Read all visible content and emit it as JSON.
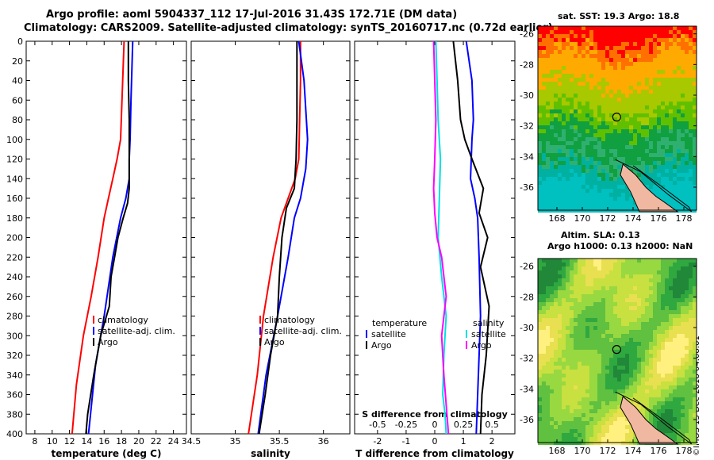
{
  "header": {
    "title_line1": "Argo profile: aoml 5904337_112 17-Jul-2016 31.43S 172.71E (DM data)",
    "title_line2": "Climatology: CARS2009. Satellite-adjusted climatology: synTS_20160717.nc (0.72d earlier)"
  },
  "copyright": "©IMOS 13-Dec-2018 04:08:01",
  "colors": {
    "climatology": "#ff0000",
    "satellite": "#0000ff",
    "argo": "#000000",
    "s_diff": "#ff00ff",
    "s_sat": "#00e0e0"
  },
  "chart_data": [
    {
      "type": "line",
      "name": "temperature-panel",
      "xlabel": "temperature (deg C)",
      "xlim": [
        7,
        25.5
      ],
      "xticks": [
        "8",
        "10",
        "12",
        "14",
        "16",
        "18",
        "20",
        "22",
        "24"
      ],
      "xtick_values": [
        8,
        10,
        12,
        14,
        16,
        18,
        20,
        22,
        24
      ],
      "ylim": [
        0,
        400
      ],
      "yticks": [
        "0",
        "20",
        "40",
        "60",
        "80",
        "100",
        "120",
        "140",
        "160",
        "180",
        "200",
        "220",
        "240",
        "260",
        "280",
        "300",
        "320",
        "340",
        "360",
        "380",
        "400"
      ],
      "ytick_values": [
        0,
        20,
        40,
        60,
        80,
        100,
        120,
        140,
        160,
        180,
        200,
        220,
        240,
        260,
        280,
        300,
        320,
        340,
        360,
        380,
        400
      ],
      "legend": [
        "climatology",
        "satellite-adj. clim.",
        "Argo"
      ],
      "series": [
        {
          "name": "climatology",
          "color": "#ff0000",
          "x": [
            18.3,
            18.1,
            17.9,
            17.5,
            17.0,
            16.5,
            16.0,
            15.3,
            14.5,
            13.6,
            12.8,
            12.3
          ],
          "y": [
            0,
            50,
            100,
            120,
            140,
            160,
            180,
            220,
            260,
            300,
            350,
            400
          ]
        },
        {
          "name": "satellite-adj. clim.",
          "color": "#0000ff",
          "x": [
            19.3,
            19.2,
            19.1,
            19.0,
            18.9,
            18.9,
            18.5,
            17.9,
            17.0,
            16.0,
            15.0,
            14.2
          ],
          "y": [
            0,
            30,
            60,
            100,
            120,
            140,
            160,
            180,
            220,
            280,
            330,
            400
          ]
        },
        {
          "name": "Argo",
          "color": "#000000",
          "x": [
            18.8,
            18.8,
            18.9,
            18.9,
            18.9,
            18.7,
            18.2,
            17.6,
            17.2,
            16.8,
            16.6,
            15.6,
            14.8,
            14.1,
            13.9
          ],
          "y": [
            0,
            40,
            80,
            120,
            150,
            165,
            180,
            200,
            220,
            240,
            270,
            300,
            340,
            380,
            400
          ]
        }
      ]
    },
    {
      "type": "line",
      "name": "salinity-panel",
      "xlabel": "salinity",
      "xlim": [
        34.5,
        36.3
      ],
      "xticks": [
        "34.5",
        "35",
        "35.5",
        "36"
      ],
      "xtick_values": [
        34.5,
        35,
        35.5,
        36
      ],
      "ylim": [
        0,
        400
      ],
      "legend": [
        "climatology",
        "satellite-adj. clim.",
        "Argo"
      ],
      "series": [
        {
          "name": "climatology",
          "color": "#ff0000",
          "x": [
            35.74,
            35.74,
            35.73,
            35.72,
            35.68,
            35.6,
            35.52,
            35.43,
            35.32,
            35.25,
            35.15
          ],
          "y": [
            0,
            40,
            80,
            120,
            140,
            160,
            180,
            220,
            280,
            340,
            400
          ]
        },
        {
          "name": "satellite-adj. clim.",
          "color": "#0000ff",
          "x": [
            35.72,
            35.78,
            35.82,
            35.8,
            35.74,
            35.67,
            35.6,
            35.48,
            35.35,
            35.26
          ],
          "y": [
            0,
            40,
            100,
            130,
            160,
            180,
            220,
            280,
            340,
            400
          ]
        },
        {
          "name": "Argo",
          "color": "#000000",
          "x": [
            35.7,
            35.7,
            35.7,
            35.69,
            35.67,
            35.58,
            35.53,
            35.5,
            35.48,
            35.4,
            35.34,
            35.27
          ],
          "y": [
            0,
            40,
            80,
            120,
            150,
            170,
            200,
            240,
            280,
            320,
            360,
            400
          ]
        }
      ]
    },
    {
      "type": "line",
      "name": "difference-panel",
      "xlabel": "T difference from climatology",
      "xlim": [
        -2.8,
        2.8
      ],
      "xticks": [
        "-2",
        "-1",
        "0",
        "1",
        "2"
      ],
      "xtick_values": [
        -2,
        -1,
        0,
        1,
        2
      ],
      "sub_xlabel": "S difference from climatology",
      "sub_xlim": [
        -0.7,
        0.7
      ],
      "sub_xticks": [
        "-0.5",
        "-0.25",
        "0",
        "0.25",
        "0.5"
      ],
      "sub_xtick_values": [
        -0.5,
        -0.25,
        0,
        0.25,
        0.5
      ],
      "ylim": [
        0,
        400
      ],
      "legend_left_title": "temperature",
      "legend_left": [
        "satellite",
        "Argo"
      ],
      "legend_right_title": "salinity",
      "legend_right": [
        "satellite",
        "Argo"
      ],
      "series": [
        {
          "name": "T satellite",
          "color": "#0000ff",
          "axis": "T",
          "x": [
            1.1,
            1.3,
            1.35,
            1.3,
            1.25,
            1.4,
            1.5,
            1.55,
            1.6,
            1.55,
            1.5,
            1.45
          ],
          "y": [
            0,
            40,
            80,
            100,
            140,
            160,
            180,
            220,
            280,
            320,
            360,
            400
          ]
        },
        {
          "name": "T Argo",
          "color": "#000000",
          "axis": "T",
          "x": [
            0.65,
            0.8,
            0.9,
            1.05,
            1.3,
            1.7,
            1.55,
            1.85,
            1.6,
            1.9,
            1.8,
            1.65,
            1.6
          ],
          "y": [
            0,
            40,
            80,
            100,
            120,
            150,
            175,
            200,
            230,
            270,
            320,
            360,
            400
          ]
        },
        {
          "name": "S satellite",
          "color": "#00e0e0",
          "axis": "S",
          "x": [
            0.01,
            0.02,
            0.03,
            0.05,
            0.04,
            0.03,
            0.06,
            0.1,
            0.08,
            0.07,
            0.09,
            0.1
          ],
          "y": [
            0,
            40,
            80,
            120,
            160,
            200,
            240,
            280,
            320,
            360,
            380,
            400
          ]
        },
        {
          "name": "S Argo",
          "color": "#ff00ff",
          "axis": "S",
          "x": [
            -0.01,
            0.0,
            0.01,
            0.0,
            -0.01,
            0.0,
            0.02,
            0.06,
            0.1,
            0.06,
            0.08,
            0.1,
            0.12
          ],
          "y": [
            0,
            40,
            80,
            120,
            150,
            175,
            200,
            220,
            260,
            300,
            340,
            370,
            400
          ]
        }
      ]
    },
    {
      "type": "heatmap",
      "name": "sst-map",
      "title": "sat. SST: 19.3 Argo: 18.8",
      "xlim": [
        166.5,
        179
      ],
      "ylim": [
        -37.5,
        -25.5
      ],
      "xticks": [
        "168",
        "170",
        "172",
        "174",
        "176",
        "178"
      ],
      "xtick_values": [
        168,
        170,
        172,
        174,
        176,
        178
      ],
      "yticks": [
        "-26",
        "-28",
        "-30",
        "-32",
        "-34",
        "-36"
      ],
      "ytick_values": [
        -26,
        -28,
        -30,
        -32,
        -34,
        -36
      ],
      "profile_location": [
        172.71,
        -31.43
      ]
    },
    {
      "type": "heatmap",
      "name": "sla-map",
      "title": "Altim. SLA: 0.13",
      "subtitle": "Argo h1000: 0.13 h2000: NaN",
      "xlim": [
        166.5,
        179
      ],
      "ylim": [
        -37.5,
        -25.5
      ],
      "xticks": [
        "168",
        "170",
        "172",
        "174",
        "176",
        "178"
      ],
      "xtick_values": [
        168,
        170,
        172,
        174,
        176,
        178
      ],
      "yticks": [
        "-26",
        "-28",
        "-30",
        "-32",
        "-34",
        "-36"
      ],
      "ytick_values": [
        -26,
        -28,
        -30,
        -32,
        -34,
        -36
      ],
      "profile_location": [
        172.71,
        -31.43
      ]
    }
  ]
}
